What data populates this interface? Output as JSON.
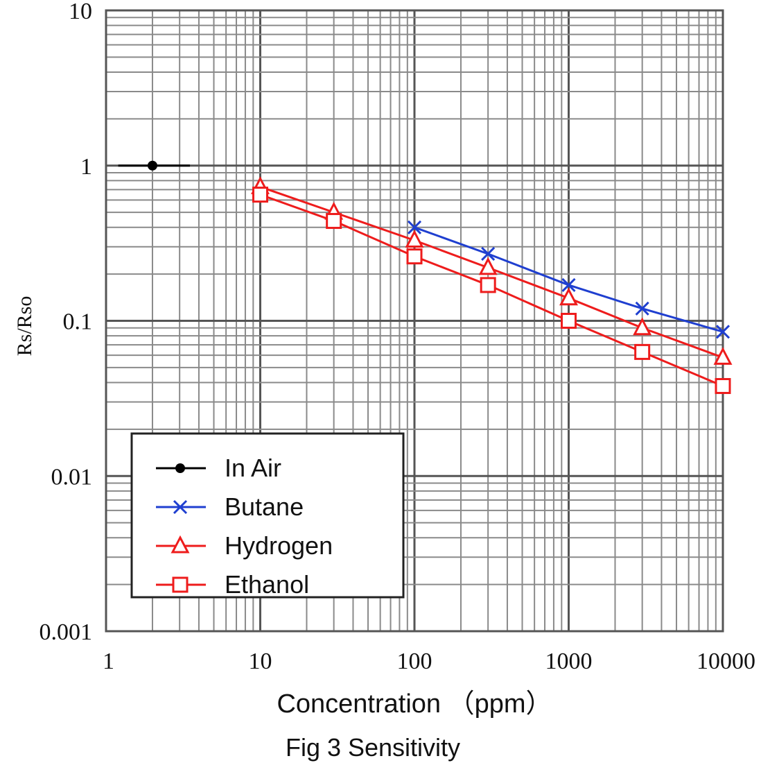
{
  "chart_data": {
    "type": "line",
    "caption": "Fig 3 Sensitivity",
    "xlabel": "Concentration （ppm）",
    "ylabel": "Rs/Rso",
    "x_scale": "log",
    "y_scale": "log",
    "xlim": [
      1,
      10000
    ],
    "ylim": [
      0.001,
      10
    ],
    "x_ticks": [
      1,
      10,
      100,
      1000,
      10000
    ],
    "x_tick_labels": [
      "1",
      "10",
      "100",
      "1000",
      "10000"
    ],
    "y_ticks": [
      10,
      1,
      0.1,
      0.01,
      0.001
    ],
    "y_tick_labels": [
      "10",
      "1",
      "0.1",
      "0.01",
      "0.001"
    ],
    "grid": true,
    "legend_position": "bottom-left",
    "series": [
      {
        "name": "In Air",
        "color": "#000000",
        "marker": "dot",
        "points": [
          [
            2,
            1.0
          ]
        ],
        "span": [
          1.2,
          3.5
        ]
      },
      {
        "name": "Butane",
        "color": "#1f3fd0",
        "marker": "x",
        "points": [
          [
            100,
            0.4
          ],
          [
            300,
            0.27
          ],
          [
            1000,
            0.17
          ],
          [
            3000,
            0.12
          ],
          [
            10000,
            0.085
          ]
        ]
      },
      {
        "name": "Hydrogen",
        "color": "#ee1c1c",
        "marker": "triangle",
        "points": [
          [
            10,
            0.73
          ],
          [
            30,
            0.5
          ],
          [
            100,
            0.33
          ],
          [
            300,
            0.22
          ],
          [
            1000,
            0.14
          ],
          [
            3000,
            0.09
          ],
          [
            10000,
            0.058
          ]
        ]
      },
      {
        "name": "Ethanol",
        "color": "#ee1c1c",
        "marker": "square",
        "points": [
          [
            10,
            0.65
          ],
          [
            30,
            0.44
          ],
          [
            100,
            0.26
          ],
          [
            300,
            0.17
          ],
          [
            1000,
            0.1
          ],
          [
            3000,
            0.063
          ],
          [
            10000,
            0.038
          ]
        ]
      }
    ]
  }
}
